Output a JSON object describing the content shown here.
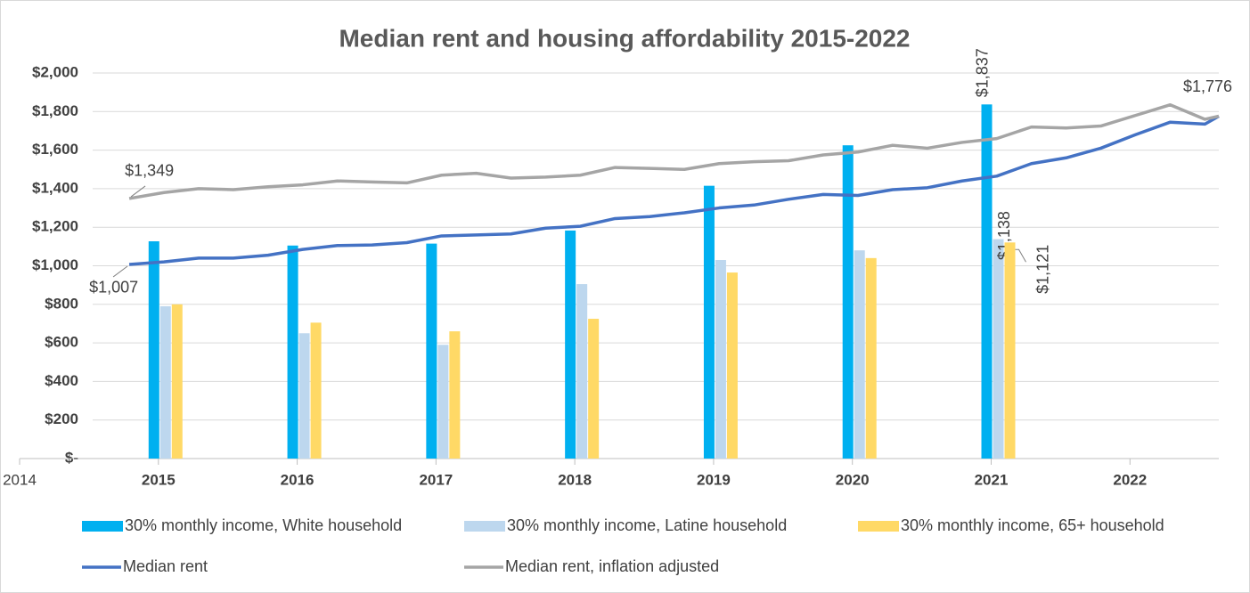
{
  "chart_data": {
    "type": "bar_line",
    "title": "Median rent and housing affordability 2015-2022",
    "xlim": [
      2014,
      2022.64
    ],
    "xticks": [
      2014,
      2015,
      2016,
      2017,
      2018,
      2019,
      2020,
      2021,
      2022
    ],
    "ylim": [
      0,
      2000
    ],
    "yticks": [
      {
        "value": 0,
        "label": "$-"
      },
      {
        "value": 200,
        "label": "$200"
      },
      {
        "value": 400,
        "label": "$400"
      },
      {
        "value": 600,
        "label": "$600"
      },
      {
        "value": 800,
        "label": "$800"
      },
      {
        "value": 1000,
        "label": "$1,000"
      },
      {
        "value": 1200,
        "label": "$1,200"
      },
      {
        "value": 1400,
        "label": "$1,400"
      },
      {
        "value": 1600,
        "label": "$1,600"
      },
      {
        "value": 1800,
        "label": "$1,800"
      },
      {
        "value": 2000,
        "label": "$2,000"
      }
    ],
    "grid": true,
    "legend": "bottom",
    "bar_x": [
      2015,
      2016,
      2017,
      2018,
      2019,
      2020,
      2021
    ],
    "bar_series": [
      {
        "name": "30% monthly income, White household",
        "color": "#00b0f0",
        "values": [
          1127,
          1105,
          1115,
          1183,
          1415,
          1625,
          1837
        ],
        "value_labels": [
          null,
          null,
          null,
          null,
          null,
          null,
          "$1,837"
        ]
      },
      {
        "name": "30% monthly income, Latine household",
        "color": "#bdd7ee",
        "values": [
          790,
          650,
          590,
          905,
          1030,
          1080,
          1138
        ],
        "value_labels": [
          null,
          null,
          null,
          null,
          null,
          null,
          "$1,138"
        ]
      },
      {
        "name": "30% monthly income, 65+ household",
        "color": "#ffd966",
        "values": [
          800,
          705,
          660,
          725,
          965,
          1040,
          1121
        ],
        "value_labels": [
          null,
          null,
          null,
          null,
          null,
          null,
          "$1,121"
        ]
      }
    ],
    "line_x": [
      2014.79,
      2015.04,
      2015.29,
      2015.54,
      2015.79,
      2016.04,
      2016.29,
      2016.54,
      2016.79,
      2017.04,
      2017.29,
      2017.54,
      2017.79,
      2018.04,
      2018.29,
      2018.54,
      2018.79,
      2019.04,
      2019.29,
      2019.54,
      2019.79,
      2020.04,
      2020.29,
      2020.54,
      2020.79,
      2021.04,
      2021.29,
      2021.54,
      2021.79,
      2022.04,
      2022.29,
      2022.54,
      2022.64
    ],
    "line_series": [
      {
        "name": "Median rent",
        "color": "#4472c4",
        "values": [
          1007,
          1020,
          1040,
          1040,
          1055,
          1085,
          1105,
          1108,
          1120,
          1155,
          1160,
          1165,
          1195,
          1205,
          1245,
          1255,
          1275,
          1300,
          1315,
          1345,
          1370,
          1365,
          1395,
          1405,
          1440,
          1465,
          1530,
          1560,
          1610,
          1680,
          1745,
          1735,
          1776
        ],
        "value_labels": [
          "$1,007",
          null,
          null,
          null,
          null,
          null,
          null,
          null,
          null,
          null,
          null,
          null,
          null,
          null,
          null,
          null,
          null,
          null,
          null,
          null,
          null,
          null,
          null,
          null,
          null,
          null,
          null,
          null,
          null,
          null,
          null,
          null,
          null
        ]
      },
      {
        "name": "Median rent, inflation adjusted",
        "color": "#a5a5a5",
        "values": [
          1349,
          1380,
          1400,
          1395,
          1410,
          1420,
          1440,
          1435,
          1430,
          1470,
          1480,
          1455,
          1460,
          1470,
          1510,
          1505,
          1500,
          1530,
          1540,
          1545,
          1575,
          1590,
          1625,
          1610,
          1640,
          1660,
          1720,
          1715,
          1725,
          1780,
          1835,
          1760,
          1776
        ],
        "value_labels": [
          "$1,349",
          null,
          null,
          null,
          null,
          null,
          null,
          null,
          null,
          null,
          null,
          null,
          null,
          null,
          null,
          null,
          null,
          null,
          null,
          null,
          null,
          null,
          null,
          null,
          null,
          null,
          null,
          null,
          null,
          null,
          null,
          null,
          "$1,776"
        ]
      }
    ]
  }
}
